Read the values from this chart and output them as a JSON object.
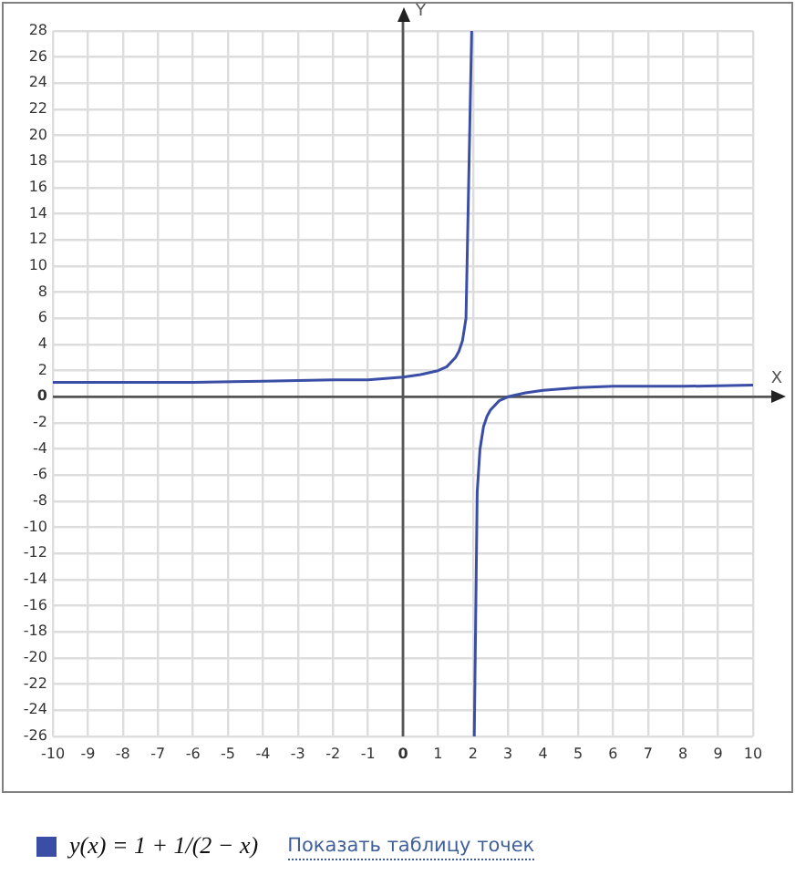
{
  "chart_data": {
    "type": "line",
    "xlabel": "X",
    "ylabel": "Y",
    "xlim": [
      -10,
      10
    ],
    "xticks": [
      -10,
      -9,
      -8,
      -7,
      -6,
      -5,
      -4,
      -3,
      -2,
      -1,
      0,
      1,
      2,
      3,
      4,
      5,
      6,
      7,
      8,
      9,
      10
    ],
    "ylim": [
      -26,
      28
    ],
    "yticks": [
      -26,
      -24,
      -22,
      -20,
      -18,
      -16,
      -14,
      -12,
      -10,
      -8,
      -6,
      -4,
      -2,
      0,
      2,
      4,
      6,
      8,
      10,
      12,
      14,
      16,
      18,
      20,
      22,
      24,
      26,
      28
    ],
    "series": [
      {
        "name": "y(x) = 1 + 1/(2 − x)",
        "color": "#3a4ea6",
        "x": [
          -10,
          -8,
          -6,
          -4,
          -2,
          -1,
          0,
          0.5,
          1,
          1.25,
          1.5,
          1.6,
          1.7,
          1.8,
          1.963,
          2,
          2.037,
          2.12,
          2.2,
          2.3,
          2.4,
          2.5,
          2.75,
          3,
          3.5,
          4,
          5,
          6,
          8,
          10
        ],
        "values": [
          1.1,
          1.1,
          1.1,
          1.2,
          1.3,
          1.3,
          1.5,
          1.7,
          2,
          2.3,
          3,
          3.5,
          4.3,
          6,
          28,
          null,
          -26,
          -7.3,
          -4,
          -2.3,
          -1.5,
          -1,
          -0.3,
          0,
          0.3,
          0.5,
          0.7,
          0.8,
          0.8,
          0.9
        ]
      }
    ],
    "annotations": [
      "Показать таблицу точек"
    ],
    "grid": true,
    "legend": "bottom",
    "marker": "none",
    "line_style": "solid"
  }
}
